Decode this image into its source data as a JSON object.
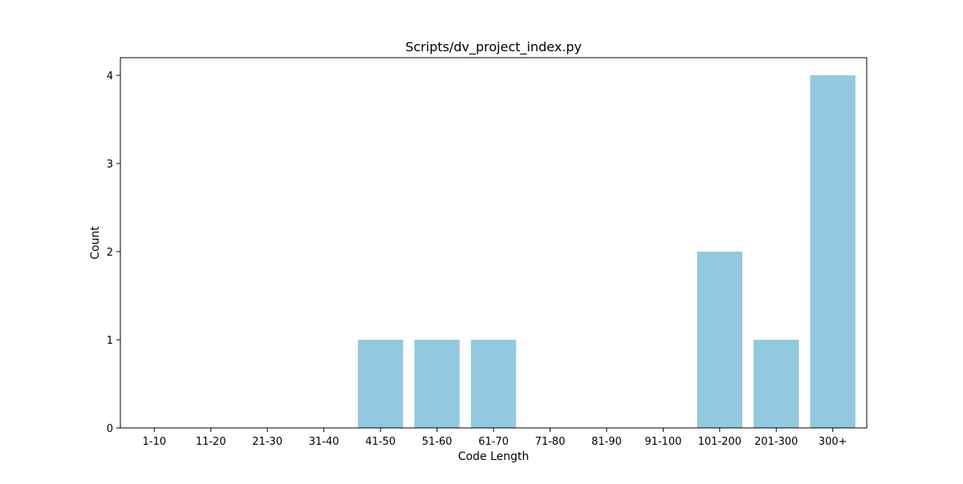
{
  "chart_data": {
    "type": "bar",
    "title": "Scripts/dv_project_index.py",
    "xlabel": "Code Length",
    "ylabel": "Count",
    "categories": [
      "1-10",
      "11-20",
      "21-30",
      "31-40",
      "41-50",
      "51-60",
      "61-70",
      "71-80",
      "81-90",
      "91-100",
      "101-200",
      "201-300",
      "300+"
    ],
    "values": [
      0,
      0,
      0,
      0,
      1,
      1,
      1,
      0,
      0,
      0,
      2,
      1,
      4
    ],
    "ylim": [
      0,
      4.2
    ],
    "yticks": [
      0,
      1,
      2,
      3,
      4
    ],
    "bar_color": "#92c9df",
    "grid": false,
    "legend": "none"
  }
}
